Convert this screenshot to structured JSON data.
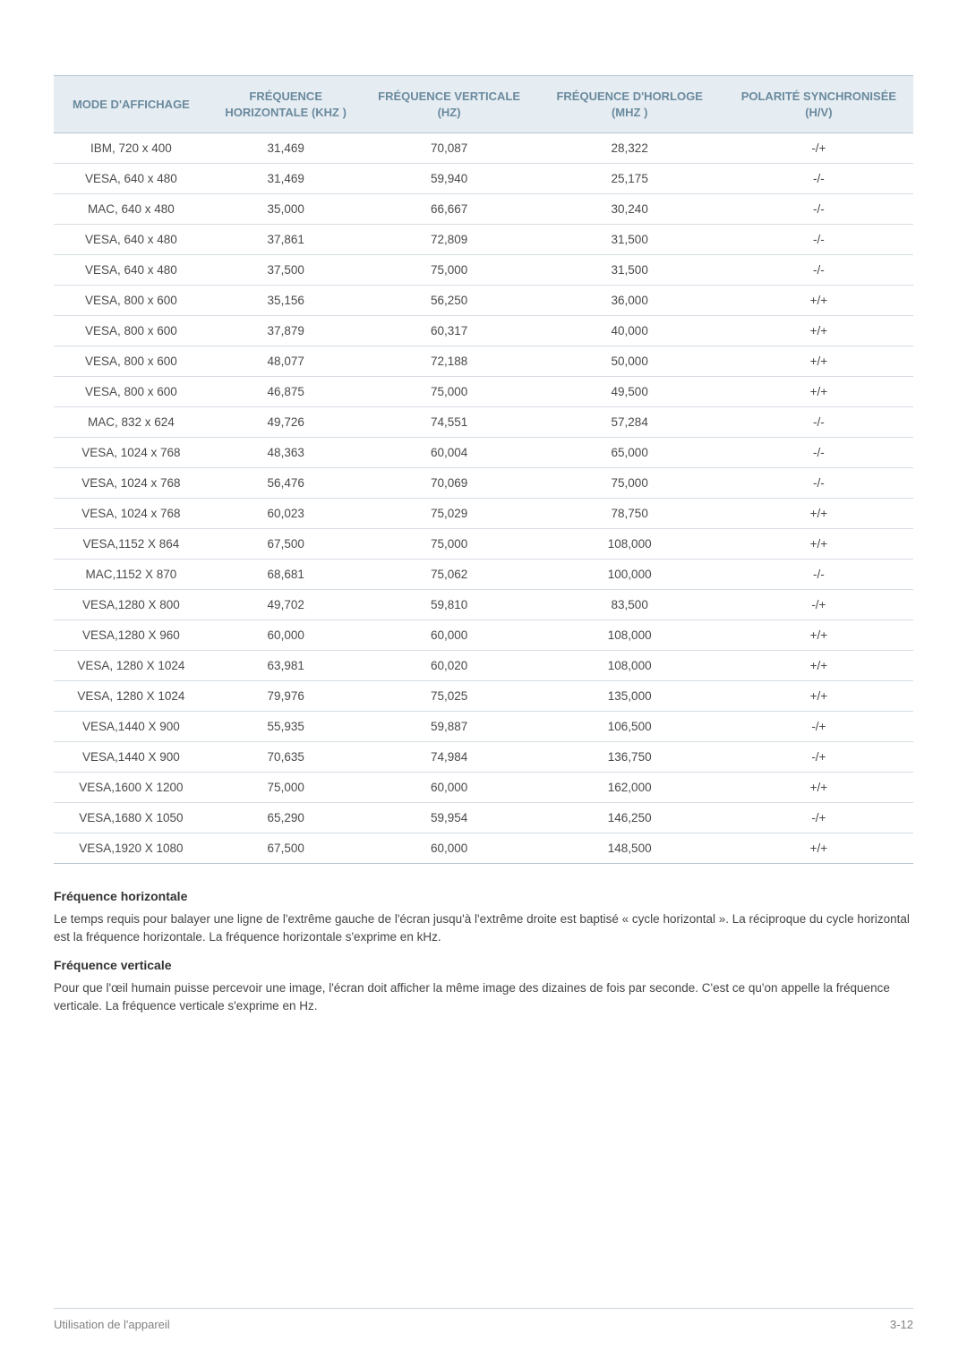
{
  "table": {
    "header_bg": "#e6edf2",
    "header_fg": "#6a8a9e",
    "border_color": "#b7c4ce",
    "row_border_color": "#d6dde3",
    "cell_fg": "#4a4a4a",
    "columns": [
      "MODE D'AFFICHAGE",
      "FRÉQUENCE HORIZONTALE (KHZ )",
      "FRÉQUENCE VERTICALE (HZ)",
      "FRÉQUENCE D'HORLOGE (MHZ )",
      "POLARITÉ SYNCHRONISÉE (H/V)"
    ],
    "rows": [
      [
        "IBM, 720 x 400",
        "31,469",
        "70,087",
        "28,322",
        "-/+"
      ],
      [
        "VESA, 640 x 480",
        "31,469",
        "59,940",
        "25,175",
        "-/-"
      ],
      [
        "MAC, 640 x 480",
        "35,000",
        "66,667",
        "30,240",
        "-/-"
      ],
      [
        "VESA, 640 x 480",
        "37,861",
        "72,809",
        "31,500",
        "-/-"
      ],
      [
        "VESA, 640 x 480",
        "37,500",
        "75,000",
        "31,500",
        "-/-"
      ],
      [
        "VESA, 800 x 600",
        "35,156",
        "56,250",
        "36,000",
        "+/+"
      ],
      [
        "VESA, 800 x 600",
        "37,879",
        "60,317",
        "40,000",
        "+/+"
      ],
      [
        "VESA, 800 x 600",
        "48,077",
        "72,188",
        "50,000",
        "+/+"
      ],
      [
        "VESA, 800 x 600",
        "46,875",
        "75,000",
        "49,500",
        "+/+"
      ],
      [
        "MAC, 832 x 624",
        "49,726",
        "74,551",
        "57,284",
        "-/-"
      ],
      [
        "VESA, 1024 x 768",
        "48,363",
        "60,004",
        "65,000",
        "-/-"
      ],
      [
        "VESA, 1024 x 768",
        "56,476",
        "70,069",
        "75,000",
        "-/-"
      ],
      [
        "VESA, 1024 x 768",
        "60,023",
        "75,029",
        "78,750",
        "+/+"
      ],
      [
        "VESA,1152 X 864",
        "67,500",
        "75,000",
        "108,000",
        "+/+"
      ],
      [
        "MAC,1152 X 870",
        "68,681",
        "75,062",
        "100,000",
        "-/-"
      ],
      [
        "VESA,1280 X 800",
        "49,702",
        "59,810",
        "83,500",
        "-/+"
      ],
      [
        "VESA,1280 X 960",
        "60,000",
        "60,000",
        "108,000",
        "+/+"
      ],
      [
        "VESA, 1280 X 1024",
        "63,981",
        "60,020",
        "108,000",
        "+/+"
      ],
      [
        "VESA, 1280 X 1024",
        "79,976",
        "75,025",
        "135,000",
        "+/+"
      ],
      [
        "VESA,1440 X 900",
        "55,935",
        "59,887",
        "106,500",
        "-/+"
      ],
      [
        "VESA,1440 X 900",
        "70,635",
        "74,984",
        "136,750",
        "-/+"
      ],
      [
        "VESA,1600 X 1200",
        "75,000",
        "60,000",
        "162,000",
        "+/+"
      ],
      [
        "VESA,1680 X 1050",
        "65,290",
        "59,954",
        "146,250",
        "-/+"
      ],
      [
        "VESA,1920 X 1080",
        "67,500",
        "60,000",
        "148,500",
        "+/+"
      ]
    ]
  },
  "notes": {
    "h1_title": "Fréquence horizontale",
    "h1_body": "Le temps requis pour balayer une ligne de l'extrême gauche de l'écran jusqu'à l'extrême droite est baptisé « cycle horizontal ». La réciproque du cycle horizontal est la fréquence horizontale. La fréquence horizontale s'exprime en kHz.",
    "h2_title": "Fréquence verticale",
    "h2_body": "Pour que l'œil humain puisse percevoir une image, l'écran doit afficher la même image des dizaines de fois par seconde. C'est ce qu'on appelle la fréquence verticale. La fréquence verticale s'exprime en Hz."
  },
  "footer": {
    "left": "Utilisation de l'appareil",
    "right": "3-12"
  }
}
